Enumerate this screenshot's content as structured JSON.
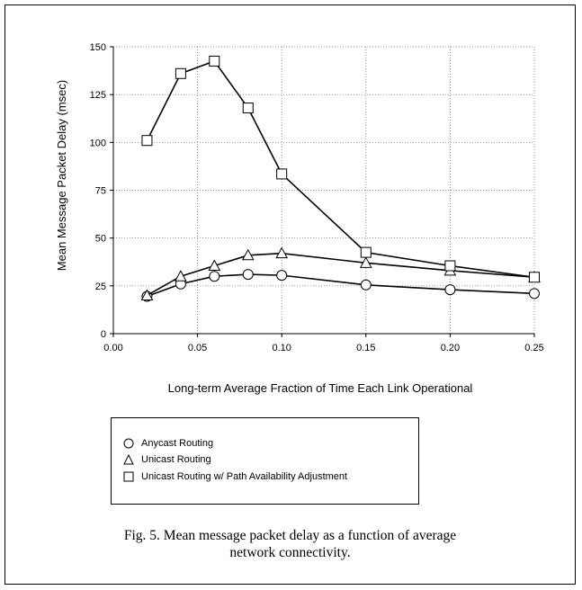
{
  "chart_data": {
    "type": "line",
    "title": "",
    "xlabel": "Long-term Average Fraction of Time Each Link Operational",
    "ylabel": "Mean Message Packet  Delay (msec)",
    "xlim": [
      0,
      0.25
    ],
    "ylim": [
      0,
      150
    ],
    "xticks": [
      "0.00",
      "0.05",
      "0.10",
      "0.15",
      "0.20",
      "0.25"
    ],
    "yticks": [
      "0",
      "25",
      "50",
      "75",
      "100",
      "125",
      "150"
    ],
    "grid": "dotted horizontal and vertical",
    "legend_position": "below",
    "x": [
      0.02,
      0.04,
      0.06,
      0.08,
      0.1,
      0.15,
      0.2,
      0.25
    ],
    "series": [
      {
        "name": "Anycast Routing",
        "marker": "circle",
        "values": [
          19.5,
          26,
          30,
          31,
          30.5,
          25.5,
          23,
          21
        ]
      },
      {
        "name": "Unicast Routing",
        "marker": "triangle",
        "values": [
          20,
          30,
          35.5,
          41,
          42,
          37,
          33,
          29.5
        ]
      },
      {
        "name": "Unicast Routing w/ Path Availability Adjustment",
        "marker": "square",
        "values": [
          101,
          136,
          142.5,
          118,
          83.5,
          42.5,
          35.5,
          29.5
        ]
      }
    ]
  },
  "caption": {
    "line1": "Fig. 5. Mean message packet delay as a function of average",
    "line2": "network connectivity."
  }
}
